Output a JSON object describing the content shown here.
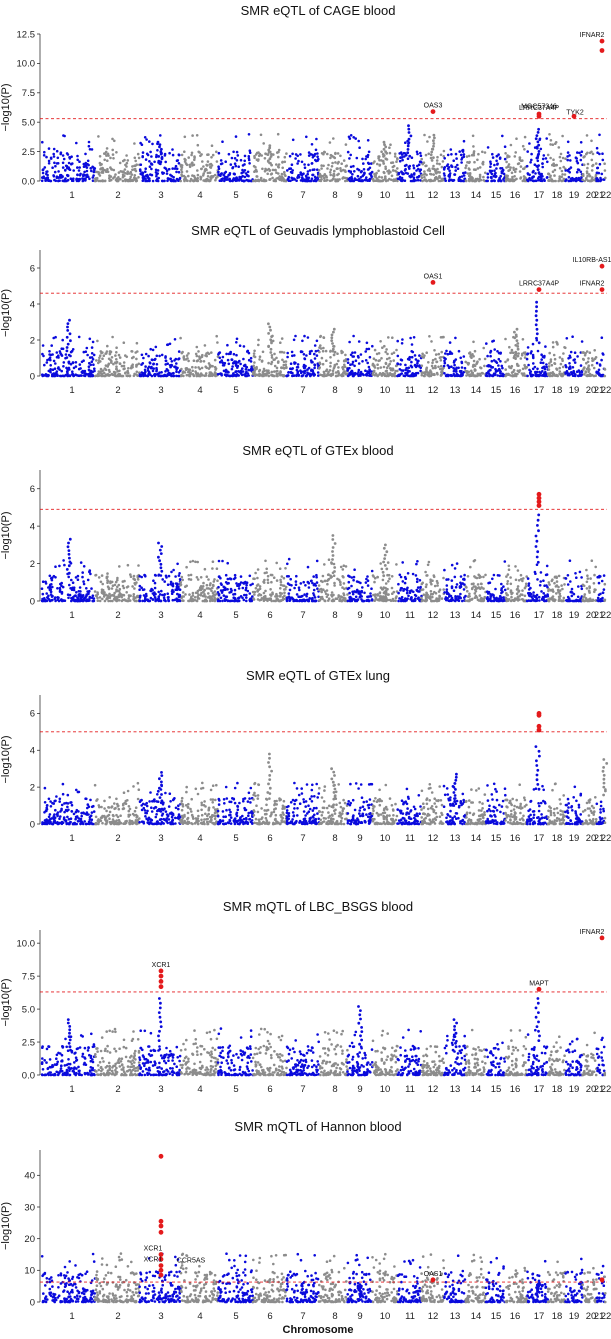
{
  "colors": {
    "odd_chr": "#0a0adc",
    "even_chr": "#8c8c8c",
    "significant": "#e41a1c",
    "threshold": "#e41a1c"
  },
  "chart_data": [
    {
      "type": "scatter",
      "subtype": "manhattan",
      "title": "SMR eQTL of CAGE blood",
      "ylabel": "−log10(P)",
      "ylim": [
        0,
        12.5
      ],
      "yticks": [
        "0.0",
        "2.5",
        "5.0",
        "7.5",
        "10.0",
        "12.5"
      ],
      "ytick_values": [
        0,
        2.5,
        5,
        7.5,
        10,
        12.5
      ],
      "threshold": 5.3,
      "chromosomes": [
        "1",
        "2",
        "3",
        "4",
        "5",
        "6",
        "7",
        "8",
        "9",
        "10",
        "11",
        "12",
        "13",
        "14",
        "15",
        "16",
        "17",
        "18",
        "19",
        "20",
        "21",
        "22"
      ],
      "peaks": [
        {
          "chr": 3,
          "value": 3.3
        },
        {
          "chr": 6,
          "value": 3.0
        },
        {
          "chr": 10,
          "value": 3.3
        },
        {
          "chr": 11,
          "value": 4.7
        },
        {
          "chr": 12,
          "value": 3.9
        },
        {
          "chr": 17,
          "value": 4.4
        }
      ],
      "significant": [
        {
          "gene": "OAS3",
          "chr": 12,
          "value": 5.9
        },
        {
          "gene": "LRRC37A4P",
          "chr": 17,
          "value": 5.7
        },
        {
          "gene": "MGC57346",
          "chr": 17,
          "value": 5.5
        },
        {
          "gene": "TYK2",
          "chr": 19,
          "value": 5.5
        },
        {
          "gene": "IFNAR2",
          "chr": 21,
          "value": 11.9
        },
        {
          "gene": "",
          "chr": 21,
          "value": 11.1
        }
      ]
    },
    {
      "type": "scatter",
      "subtype": "manhattan",
      "title": "SMR eQTL of Geuvadis lymphoblastoid Cell",
      "ylabel": "−log10(P)",
      "ylim": [
        0,
        7
      ],
      "yticks": [
        "0",
        "2",
        "4",
        "6"
      ],
      "ytick_values": [
        0,
        2,
        4,
        6
      ],
      "threshold": 4.6,
      "chromosomes": [
        "1",
        "2",
        "3",
        "4",
        "5",
        "6",
        "7",
        "8",
        "9",
        "10",
        "11",
        "12",
        "13",
        "14",
        "15",
        "16",
        "17",
        "18",
        "19",
        "20",
        "21",
        "22"
      ],
      "peaks": [
        {
          "chr": 1,
          "value": 3.1
        },
        {
          "chr": 6,
          "value": 2.9
        },
        {
          "chr": 8,
          "value": 2.6
        },
        {
          "chr": 16,
          "value": 2.6
        },
        {
          "chr": 17,
          "value": 4.1
        }
      ],
      "significant": [
        {
          "gene": "OAS1",
          "chr": 12,
          "value": 5.2
        },
        {
          "gene": "LRRC37A4P",
          "chr": 17,
          "value": 4.8
        },
        {
          "gene": "IL10RB-AS1",
          "chr": 21,
          "value": 6.1
        },
        {
          "gene": "IFNAR2",
          "chr": 21,
          "value": 4.8
        }
      ]
    },
    {
      "type": "scatter",
      "subtype": "manhattan",
      "title": "SMR eQTL of GTEx blood",
      "ylabel": "−log10(P)",
      "ylim": [
        0,
        7
      ],
      "yticks": [
        "0",
        "2",
        "4",
        "6"
      ],
      "ytick_values": [
        0,
        2,
        4,
        6
      ],
      "threshold": 4.9,
      "chromosomes": [
        "1",
        "2",
        "3",
        "4",
        "5",
        "6",
        "7",
        "8",
        "9",
        "10",
        "11",
        "12",
        "13",
        "14",
        "15",
        "16",
        "17",
        "18",
        "19",
        "20",
        "21",
        "22"
      ],
      "peaks": [
        {
          "chr": 1,
          "value": 3.3
        },
        {
          "chr": 3,
          "value": 3.1
        },
        {
          "chr": 8,
          "value": 3.5
        },
        {
          "chr": 10,
          "value": 3.0
        },
        {
          "chr": 17,
          "value": 4.6
        }
      ],
      "significant": [
        {
          "gene": "",
          "chr": 17,
          "value": 5.7
        },
        {
          "gene": "",
          "chr": 17,
          "value": 5.5
        },
        {
          "gene": "",
          "chr": 17,
          "value": 5.3
        },
        {
          "gene": "",
          "chr": 17,
          "value": 5.1
        }
      ]
    },
    {
      "type": "scatter",
      "subtype": "manhattan",
      "title": "SMR eQTL of GTEx lung",
      "ylabel": "−log10(P)",
      "ylim": [
        0,
        7
      ],
      "yticks": [
        "0",
        "2",
        "4",
        "6"
      ],
      "ytick_values": [
        0,
        2,
        4,
        6
      ],
      "threshold": 5.0,
      "chromosomes": [
        "1",
        "2",
        "3",
        "4",
        "5",
        "6",
        "7",
        "8",
        "9",
        "10",
        "11",
        "12",
        "13",
        "14",
        "15",
        "16",
        "17",
        "18",
        "19",
        "20",
        "21",
        "22"
      ],
      "peaks": [
        {
          "chr": 3,
          "value": 2.8
        },
        {
          "chr": 6,
          "value": 3.8
        },
        {
          "chr": 8,
          "value": 3.0
        },
        {
          "chr": 13,
          "value": 2.7
        },
        {
          "chr": 17,
          "value": 4.2
        },
        {
          "chr": 22,
          "value": 3.5
        }
      ],
      "significant": [
        {
          "gene": "",
          "chr": 17,
          "value": 6.0
        },
        {
          "gene": "",
          "chr": 17,
          "value": 5.9
        },
        {
          "gene": "",
          "chr": 17,
          "value": 5.3
        },
        {
          "gene": "",
          "chr": 17,
          "value": 5.1
        }
      ]
    },
    {
      "type": "scatter",
      "subtype": "manhattan",
      "title": "SMR mQTL of LBC_BSGS blood",
      "ylabel": "−log10(P)",
      "ylim": [
        0,
        11
      ],
      "yticks": [
        "0.0",
        "2.5",
        "5.0",
        "7.5",
        "10.0"
      ],
      "ytick_values": [
        0,
        2.5,
        5,
        7.5,
        10
      ],
      "threshold": 6.3,
      "chromosomes": [
        "1",
        "2",
        "3",
        "4",
        "5",
        "6",
        "7",
        "8",
        "9",
        "10",
        "11",
        "12",
        "13",
        "14",
        "15",
        "16",
        "17",
        "18",
        "19",
        "20",
        "21",
        "22"
      ],
      "peaks": [
        {
          "chr": 1,
          "value": 4.2
        },
        {
          "chr": 3,
          "value": 5.8
        },
        {
          "chr": 9,
          "value": 5.2
        },
        {
          "chr": 13,
          "value": 4.2
        },
        {
          "chr": 17,
          "value": 5.8
        }
      ],
      "significant": [
        {
          "gene": "XCR1",
          "chr": 3,
          "value": 7.9
        },
        {
          "gene": "",
          "chr": 3,
          "value": 7.5
        },
        {
          "gene": "",
          "chr": 3,
          "value": 7.1
        },
        {
          "gene": "",
          "chr": 3,
          "value": 6.7
        },
        {
          "gene": "MAPT",
          "chr": 17,
          "value": 6.5
        },
        {
          "gene": "IFNAR2",
          "chr": 21,
          "value": 10.4
        }
      ]
    },
    {
      "type": "scatter",
      "subtype": "manhattan",
      "title": "SMR mQTL of Hannon blood",
      "ylabel": "−log10(P)",
      "xlabel": "Chromosome",
      "ylim": [
        0,
        48
      ],
      "yticks": [
        "0",
        "10",
        "20",
        "30",
        "40"
      ],
      "ytick_values": [
        0,
        10,
        20,
        30,
        40
      ],
      "threshold": 6.3,
      "chromosomes": [
        "1",
        "2",
        "3",
        "4",
        "5",
        "6",
        "7",
        "8",
        "9",
        "10",
        "11",
        "12",
        "13",
        "14",
        "15",
        "16",
        "17",
        "18",
        "19",
        "20",
        "21",
        "22"
      ],
      "peaks": [
        {
          "chr": 9,
          "value": 5.0
        },
        {
          "chr": 17,
          "value": 6.0
        }
      ],
      "significant": [
        {
          "gene": "",
          "chr": 3,
          "value": 46.0
        },
        {
          "gene": "",
          "chr": 3,
          "value": 25.5
        },
        {
          "gene": "",
          "chr": 3,
          "value": 24.0
        },
        {
          "gene": "",
          "chr": 3,
          "value": 22.0
        },
        {
          "gene": "XCR1",
          "chr": 3,
          "value": 15.0
        },
        {
          "gene": "CCR5AS",
          "chr": 3,
          "value": 13.5
        },
        {
          "gene": "XCR1",
          "chr": 3,
          "value": 11.5
        },
        {
          "gene": "",
          "chr": 3,
          "value": 10.0
        },
        {
          "gene": "",
          "chr": 3,
          "value": 8.5
        },
        {
          "gene": "OAS1",
          "chr": 12,
          "value": 7.0
        },
        {
          "gene": "",
          "chr": 21,
          "value": 7.0
        }
      ]
    }
  ]
}
